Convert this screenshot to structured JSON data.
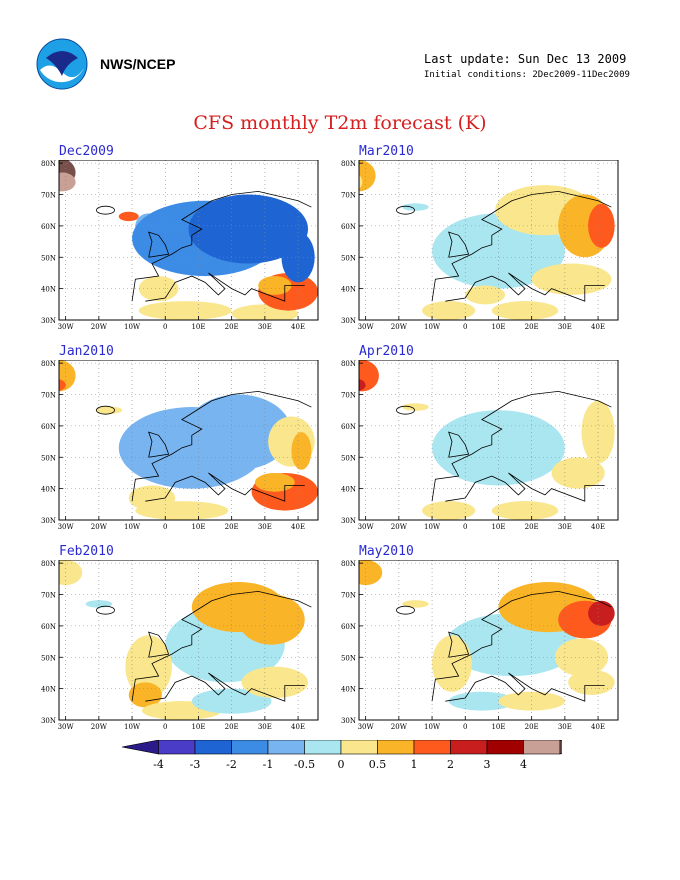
{
  "header": {
    "agency": "NWS/NCEP",
    "last_update": "Last update: Sun Dec 13 2009",
    "initial_conditions": "Initial conditions: 2Dec2009-11Dec2009",
    "logo_icon": "noaa-logo"
  },
  "title": "CFS monthly T2m forecast (K)",
  "axes": {
    "lat_labels": [
      "80N",
      "70N",
      "60N",
      "50N",
      "40N",
      "30N"
    ],
    "lon_labels": [
      "30W",
      "20W",
      "10W",
      "0",
      "10E",
      "20E",
      "30E",
      "40E"
    ]
  },
  "panels": [
    {
      "label": "Dec2009",
      "id": "dec2009"
    },
    {
      "label": "Mar2010",
      "id": "mar2010"
    },
    {
      "label": "Jan2010",
      "id": "jan2010"
    },
    {
      "label": "Apr2010",
      "id": "apr2010"
    },
    {
      "label": "Feb2010",
      "id": "feb2010"
    },
    {
      "label": "May2010",
      "id": "may2010"
    }
  ],
  "colorbar": {
    "labels": [
      "-4",
      "-3",
      "-2",
      "-1",
      "-0.5",
      "0",
      "0.5",
      "1",
      "2",
      "3",
      "4"
    ],
    "colors": [
      "#2a1a8a",
      "#4b3cc8",
      "#1e64d2",
      "#3c8ce6",
      "#78b4f0",
      "#aae6f0",
      "#fae68c",
      "#fab428",
      "#ff5a1e",
      "#c81e1e",
      "#a00000",
      "#c8a096",
      "#78504b"
    ]
  }
}
